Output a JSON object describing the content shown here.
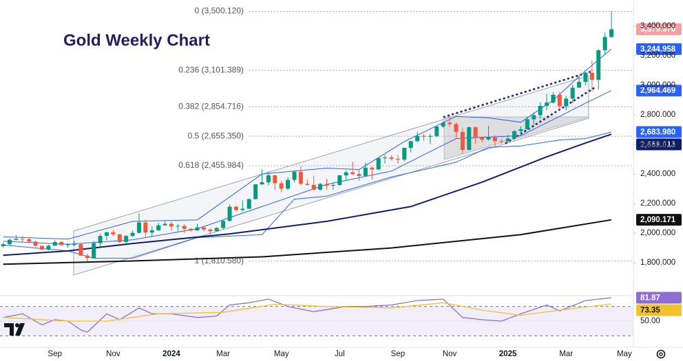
{
  "chart_data": {
    "type": "candlestick",
    "title": "Gold Weekly Chart",
    "up_color": "#089981",
    "down_color": "#ef5a3f",
    "xlim": [
      -0.49,
      97.4
    ],
    "xticks": [
      {
        "value": 8,
        "label": "Sep"
      },
      {
        "value": 17,
        "label": "Nov"
      },
      {
        "value": 26,
        "label": "2024"
      },
      {
        "value": 34,
        "label": "Mar"
      },
      {
        "value": 43,
        "label": "May"
      },
      {
        "value": 52,
        "label": "Jul"
      },
      {
        "value": 61,
        "label": "Sep"
      },
      {
        "value": 69,
        "label": "Nov"
      },
      {
        "value": 78,
        "label": "2025"
      },
      {
        "value": 87,
        "label": "Mar"
      },
      {
        "value": 96,
        "label": "May"
      }
    ],
    "ylim": [
      1577,
      3577
    ],
    "yticks": [
      {
        "value": 1800,
        "label": "1,800.000"
      },
      {
        "value": 2000,
        "label": "2,000.000"
      },
      {
        "value": 2200,
        "label": "2,200.000"
      },
      {
        "value": 2400,
        "label": "2,400.000"
      },
      {
        "value": 2600,
        "label": "2,600.000"
      },
      {
        "value": 2800,
        "label": "2,800.000"
      },
      {
        "value": 3000,
        "label": "3,000.000"
      },
      {
        "value": 3200,
        "label": "3,200.000"
      },
      {
        "value": 3400,
        "label": "3,400.000"
      }
    ],
    "open": [
      1912,
      1925,
      1955,
      1962,
      1959,
      1943,
      1914,
      1889,
      1915,
      1940,
      1919,
      1924,
      1925,
      1848,
      1833,
      1932,
      1981,
      2006,
      1992,
      1940,
      1981,
      2002,
      2072,
      2004,
      2019,
      2053,
      2063,
      2045,
      2049,
      2029,
      2018,
      2039,
      2024,
      2013,
      2035,
      2083,
      2179,
      2156,
      2165,
      2230,
      2330,
      2344,
      2391,
      2337,
      2301,
      2360,
      2415,
      2334,
      2327,
      2294,
      2333,
      2321,
      2326,
      2391,
      2411,
      2400,
      2387,
      2443,
      2431,
      2507,
      2512,
      2503,
      2497,
      2577,
      2622,
      2658,
      2653,
      2657,
      2721,
      2747,
      2737,
      2685,
      2563,
      2716,
      2650,
      2633,
      2648,
      2622,
      2621,
      2640,
      2690,
      2703,
      2770,
      2798,
      2861,
      2883,
      2936,
      2858,
      2910,
      2984,
      3023,
      3084,
      3037,
      3237,
      3327
    ],
    "high": [
      1935,
      1963,
      1987,
      1982,
      1970,
      1948,
      1918,
      1923,
      1953,
      1945,
      1933,
      1947,
      1928,
      1861,
      1947,
      1997,
      2009,
      2019,
      1994,
      1988,
      2017,
      2135,
      2090,
      2047,
      2070,
      2088,
      2078,
      2062,
      2062,
      2037,
      2065,
      2050,
      2032,
      2041,
      2088,
      2195,
      2185,
      2222,
      2236,
      2330,
      2431,
      2418,
      2395,
      2353,
      2378,
      2422,
      2450,
      2364,
      2388,
      2339,
      2368,
      2340,
      2393,
      2425,
      2484,
      2432,
      2477,
      2450,
      2509,
      2531,
      2525,
      2529,
      2579,
      2625,
      2685,
      2670,
      2672,
      2722,
      2758,
      2790,
      2750,
      2710,
      2721,
      2721,
      2657,
      2726,
      2663,
      2638,
      2665,
      2697,
      2724,
      2786,
      2817,
      2886,
      2942,
      2955,
      2956,
      2930,
      3005,
      3057,
      3087,
      3167,
      3245,
      3357,
      3500.12
    ],
    "low": [
      1902,
      1915,
      1950,
      1942,
      1932,
      1908,
      1885,
      1884,
      1913,
      1915,
      1901,
      1913,
      1846,
      1810,
      1831,
      1908,
      1953,
      1979,
      1932,
      1932,
      1976,
      2000,
      1973,
      1973,
      2016,
      2050,
      2016,
      2013,
      2001,
      2010,
      2015,
      2014,
      1984,
      2009,
      2024,
      2079,
      2146,
      2146,
      2164,
      2228,
      2326,
      2324,
      2292,
      2277,
      2291,
      2344,
      2325,
      2323,
      2287,
      2286,
      2296,
      2294,
      2319,
      2352,
      2393,
      2354,
      2380,
      2364,
      2427,
      2471,
      2494,
      2471,
      2485,
      2547,
      2615,
      2625,
      2603,
      2650,
      2708,
      2722,
      2644,
      2536,
      2560,
      2605,
      2613,
      2627,
      2583,
      2603,
      2614,
      2630,
      2656,
      2700,
      2732,
      2772,
      2832,
      2877,
      2832,
      2832,
      2880,
      2982,
      2999,
      2957,
      2970,
      3210,
      3320
    ],
    "close": [
      1925,
      1955,
      1962,
      1959,
      1943,
      1914,
      1889,
      1915,
      1940,
      1919,
      1924,
      1925,
      1848,
      1833,
      1932,
      1981,
      2006,
      1992,
      1940,
      1981,
      2002,
      2072,
      2004,
      2019,
      2053,
      2063,
      2045,
      2049,
      2029,
      2018,
      2039,
      2024,
      2013,
      2035,
      2083,
      2179,
      2156,
      2165,
      2230,
      2330,
      2344,
      2391,
      2337,
      2301,
      2360,
      2415,
      2334,
      2327,
      2294,
      2333,
      2321,
      2326,
      2391,
      2411,
      2400,
      2387,
      2443,
      2431,
      2507,
      2512,
      2503,
      2497,
      2577,
      2622,
      2658,
      2653,
      2657,
      2721,
      2747,
      2737,
      2685,
      2563,
      2716,
      2650,
      2633,
      2648,
      2622,
      2621,
      2640,
      2690,
      2703,
      2770,
      2798,
      2861,
      2883,
      2936,
      2858,
      2910,
      2984,
      3023,
      3084,
      3037,
      3237,
      3327,
      3379.37
    ],
    "last_close_label": "3,379.370",
    "last_close_color": "#f4a0a0",
    "fib_levels": [
      {
        "label": "0 (3,500.120)",
        "value": 3500.12
      },
      {
        "label": "0.236 (3,101.389)",
        "value": 3101.389
      },
      {
        "label": "0.382 (2,854.716)",
        "value": 2854.716
      },
      {
        "label": "0.5 (2,655.350)",
        "value": 2655.35
      },
      {
        "label": "0.618 (2,455.984)",
        "value": 2455.984
      },
      {
        "label": "1 (1,810.580)",
        "value": 1810.58
      }
    ],
    "overlays": [
      {
        "color": "#2962ff",
        "width": 1,
        "x": [
          0,
          10,
          20,
          30,
          40,
          50,
          55,
          62,
          70,
          75,
          80,
          85,
          90,
          94
        ],
        "values": [
          1975,
          1960,
          2080,
          2090,
          2400,
          2440,
          2430,
          2620,
          2790,
          2780,
          2750,
          2900,
          3100,
          3244.958
        ],
        "label": "3,244.958"
      },
      {
        "color": "#2962ff",
        "width": 1,
        "x": [
          0,
          10,
          20,
          30,
          40,
          50,
          60,
          70,
          80,
          86,
          90,
          94
        ],
        "values": [
          1945,
          1925,
          1955,
          2030,
          2180,
          2330,
          2420,
          2640,
          2660,
          2790,
          2880,
          2964.469
        ],
        "label": "2,964.469"
      },
      {
        "color": "#2962ff",
        "width": 1,
        "x": [
          0,
          10,
          14,
          20,
          30,
          40,
          45,
          50,
          60,
          70,
          75,
          80,
          86,
          90,
          94
        ],
        "values": [
          1920,
          1880,
          1830,
          1830,
          1970,
          1990,
          2230,
          2250,
          2380,
          2480,
          2580,
          2590,
          2630,
          2640,
          2683.98
        ],
        "label": "2,683.980"
      },
      {
        "color": "#0d1e6b",
        "width": 2,
        "x": [
          0,
          10,
          20,
          35,
          50,
          63,
          74,
          84,
          90,
          94
        ],
        "values": [
          1850,
          1880,
          1930,
          1995,
          2080,
          2180,
          2345,
          2516,
          2610,
          2669.013
        ],
        "label": "2,669.013"
      },
      {
        "color": "#111111",
        "width": 2,
        "x": [
          0,
          20,
          40,
          60,
          80,
          94
        ],
        "values": [
          1790,
          1812,
          1840,
          1900,
          1990,
          2090.171
        ],
        "label": "2,090.171"
      }
    ],
    "rsi": {
      "ylim": [
        14.4,
        84.7
      ],
      "yticks": [
        {
          "value": 50,
          "label": "50.00"
        }
      ],
      "bands": [
        30,
        70
      ],
      "series": [
        {
          "color": "#8e6fd1",
          "x": [
            0,
            3,
            6,
            8,
            10,
            12,
            13,
            16,
            18,
            21,
            23,
            26,
            30,
            33,
            35,
            38,
            41,
            44,
            48,
            53,
            56,
            60,
            64,
            68,
            71,
            74,
            77,
            80,
            84,
            86,
            90,
            92,
            94
          ],
          "values": [
            55,
            60,
            45,
            52,
            50,
            38,
            35,
            60,
            52,
            68,
            60,
            60,
            55,
            57,
            72,
            75,
            80,
            70,
            63,
            70,
            70,
            72,
            78,
            80,
            55,
            52,
            50,
            60,
            72,
            64,
            78,
            80,
            81.87
          ],
          "label": "81.87"
        },
        {
          "color": "#f2c12e",
          "x": [
            0,
            10,
            16,
            24,
            34,
            42,
            50,
            60,
            68,
            74,
            80,
            86,
            94
          ],
          "values": [
            55,
            50,
            50,
            60,
            62,
            73,
            70,
            68,
            75,
            65,
            58,
            65,
            73.35
          ],
          "label": "73.35"
        }
      ]
    }
  }
}
